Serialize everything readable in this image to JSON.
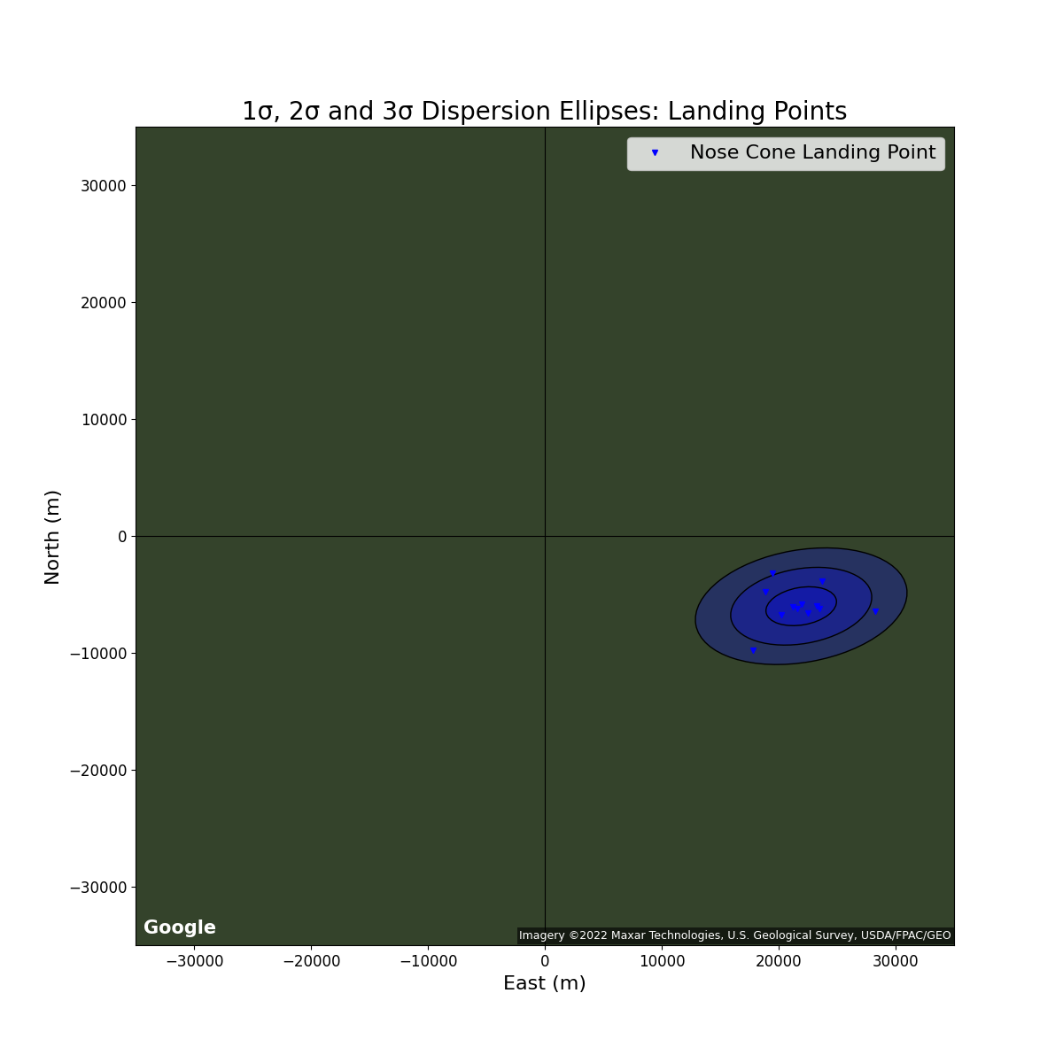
{
  "chart_data": {
    "type": "scatter",
    "title": "1σ, 2σ and 3σ Dispersion Ellipses: Landing Points",
    "x_label": "East (m)",
    "y_label": "North (m)",
    "series": [
      {
        "name": "Nose Cone Landing Point",
        "color": "blue",
        "marker": "v",
        "x": [
          19470,
          18860,
          23710,
          28260,
          17800,
          20230,
          21210,
          21970,
          21590,
          22500,
          23260,
          23480
        ],
        "values": [
          -3180,
          -4770,
          -3860,
          -6440,
          -9770,
          -6740,
          -6060,
          -5830,
          -6210,
          -6590,
          -5980,
          -6210
        ]
      }
    ],
    "ellipses": {
      "center": [
        21930,
        -5980
      ],
      "widths": [
        6100,
        12200,
        18300
      ],
      "heights": [
        3200,
        6400,
        9600
      ],
      "angle": 10,
      "color": "blue"
    },
    "origin": [
      0,
      0
    ],
    "xlim": [
      -35000,
      35000
    ],
    "ylim": [
      -35000,
      35000
    ],
    "xticks": [
      {
        "value": -30000,
        "label": "−30000"
      },
      {
        "value": -20000,
        "label": "−20000"
      },
      {
        "value": -10000,
        "label": "−10000"
      },
      0,
      10000,
      20000,
      30000
    ],
    "yticks": [
      {
        "value": -30000,
        "label": "−30000"
      },
      {
        "value": -20000,
        "label": "−20000"
      },
      {
        "value": -10000,
        "label": "−10000"
      },
      0,
      10000,
      20000,
      30000
    ],
    "legend": "upper right",
    "annotations": [
      "Google",
      "Imagery ©2022 Maxar Technologies, U.S. Geological Survey, USDA/FPAC/GEO"
    ]
  }
}
